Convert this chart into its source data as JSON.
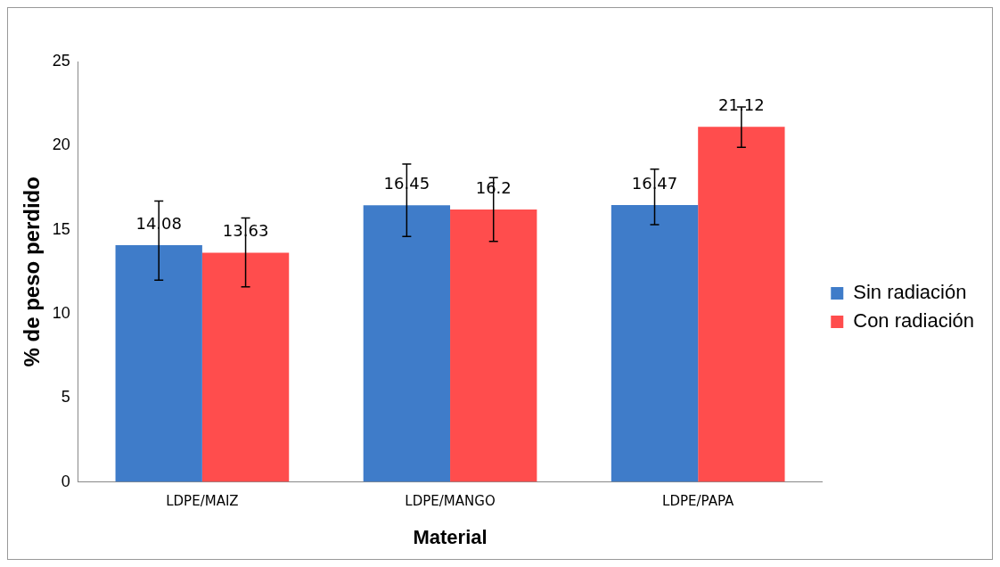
{
  "chart_data": {
    "type": "bar",
    "xlabel": "Material",
    "ylabel": "% de peso perdido",
    "categories": [
      "LDPE/MAIZ",
      "LDPE/MANGO",
      "LDPE/PAPA"
    ],
    "series": [
      {
        "name": "Sin radiación",
        "color": "#3f7cc9",
        "values": [
          14.08,
          16.45,
          16.47
        ],
        "errors": [
          [
            12.0,
            16.7
          ],
          [
            14.6,
            18.9
          ],
          [
            15.3,
            18.6
          ]
        ]
      },
      {
        "name": "Con radiación",
        "color": "#ff4d4d",
        "values": [
          13.63,
          16.2,
          21.12
        ],
        "errors": [
          [
            11.6,
            15.7
          ],
          [
            14.3,
            18.1
          ],
          [
            19.9,
            22.3
          ]
        ]
      }
    ],
    "ylim": [
      0,
      25
    ],
    "yticks": [
      0,
      5,
      10,
      15,
      20,
      25
    ],
    "grid": false,
    "legend": "right",
    "data_labels": true
  }
}
